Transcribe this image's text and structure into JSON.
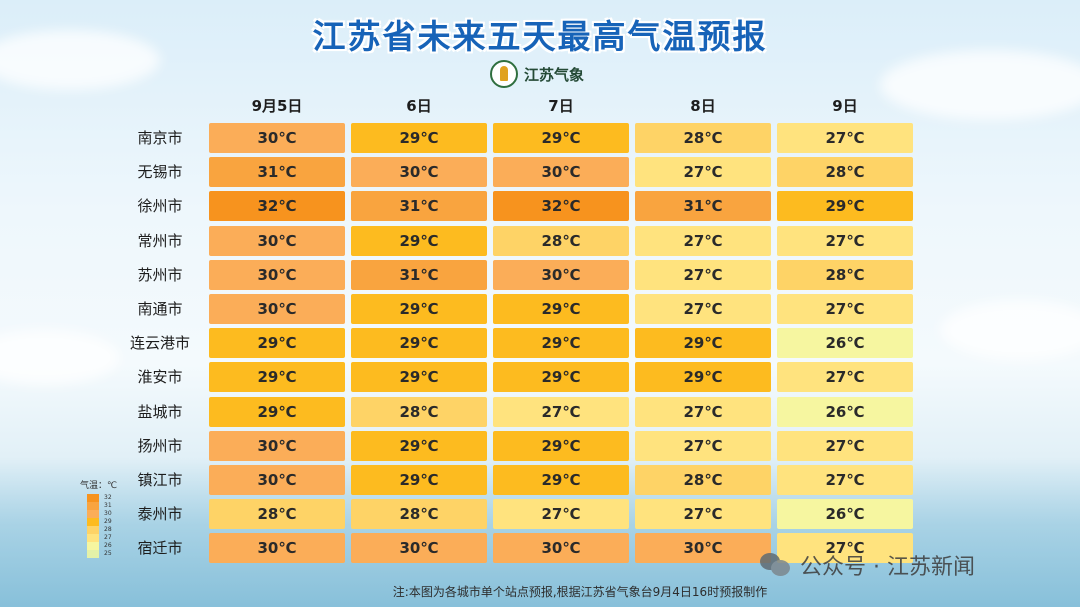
{
  "title": "江苏省未来五天最高气温预报",
  "brand": {
    "name": "江苏气象",
    "logo_icon": "jiangsu-meteorology-logo-icon"
  },
  "days": [
    "9月5日",
    "6日",
    "7日",
    "8日",
    "9日"
  ],
  "cities": [
    {
      "name": "南京市",
      "temps": [
        "30℃",
        "29℃",
        "29℃",
        "28℃",
        "27℃"
      ]
    },
    {
      "name": "无锡市",
      "temps": [
        "31℃",
        "30℃",
        "30℃",
        "27℃",
        "28℃"
      ]
    },
    {
      "name": "徐州市",
      "temps": [
        "32℃",
        "31℃",
        "32℃",
        "31℃",
        "29℃"
      ]
    },
    {
      "name": "常州市",
      "temps": [
        "30℃",
        "29℃",
        "28℃",
        "27℃",
        "27℃"
      ]
    },
    {
      "name": "苏州市",
      "temps": [
        "30℃",
        "31℃",
        "30℃",
        "27℃",
        "28℃"
      ]
    },
    {
      "name": "南通市",
      "temps": [
        "30℃",
        "29℃",
        "29℃",
        "27℃",
        "27℃"
      ]
    },
    {
      "name": "连云港市",
      "temps": [
        "29℃",
        "29℃",
        "29℃",
        "29℃",
        "26℃"
      ]
    },
    {
      "name": "淮安市",
      "temps": [
        "29℃",
        "29℃",
        "29℃",
        "29℃",
        "27℃"
      ]
    },
    {
      "name": "盐城市",
      "temps": [
        "29℃",
        "28℃",
        "27℃",
        "27℃",
        "26℃"
      ]
    },
    {
      "name": "扬州市",
      "temps": [
        "30℃",
        "29℃",
        "29℃",
        "27℃",
        "27℃"
      ]
    },
    {
      "name": "镇江市",
      "temps": [
        "30℃",
        "29℃",
        "29℃",
        "28℃",
        "27℃"
      ]
    },
    {
      "name": "泰州市",
      "temps": [
        "28℃",
        "28℃",
        "27℃",
        "27℃",
        "26℃"
      ]
    },
    {
      "name": "宿迁市",
      "temps": [
        "30℃",
        "30℃",
        "30℃",
        "30℃",
        "27℃"
      ]
    }
  ],
  "legend": {
    "title": "气温：℃",
    "items": [
      {
        "label": "32",
        "color": "#f7931e"
      },
      {
        "label": "31",
        "color": "#f9a43f"
      },
      {
        "label": "30",
        "color": "#fbad58"
      },
      {
        "label": "29",
        "color": "#fdbb1f"
      },
      {
        "label": "28",
        "color": "#fed366"
      },
      {
        "label": "27",
        "color": "#ffe37e"
      },
      {
        "label": "26",
        "color": "#f6f6a0"
      },
      {
        "label": "25",
        "color": "#e4f1a8"
      }
    ]
  },
  "watermark": {
    "text": "公众号 · 江苏新闻",
    "icon": "wechat-icon"
  },
  "footnote": "注:本图为各城市单个站点预报,根据江苏省气象台9月4日16时预报制作",
  "colors": {
    "title": "#1763b8"
  }
}
